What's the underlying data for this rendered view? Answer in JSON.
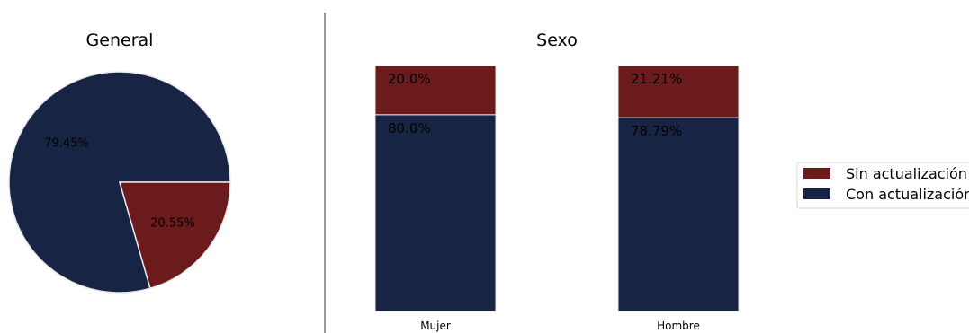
{
  "colors": {
    "sin": "#6b1b1b",
    "con": "#172444",
    "divider": "#9a9a9a",
    "edge": "#e9e9e9"
  },
  "chart_data": [
    {
      "type": "pie",
      "title": "General",
      "slices": [
        {
          "name": "Con actualización",
          "value": 79.45,
          "label": "79.45%"
        },
        {
          "name": "Sin actualización",
          "value": 20.55,
          "label": "20.55%"
        }
      ]
    },
    {
      "type": "bar",
      "stacked": true,
      "normalized": true,
      "title": "Sexo",
      "categories": [
        "Mujer",
        "Hombre"
      ],
      "series": [
        {
          "name": "Con actualización",
          "values": [
            80.0,
            78.79
          ],
          "labels": [
            "80.0%",
            "78.79%"
          ]
        },
        {
          "name": "Sin actualización",
          "values": [
            20.0,
            21.21
          ],
          "labels": [
            "20.0%",
            "21.21%"
          ]
        }
      ],
      "ylim": [
        0,
        100
      ],
      "grid": false,
      "legend_placement": "right"
    }
  ],
  "legend": {
    "items": [
      {
        "label": "Sin actualización",
        "series": "sin"
      },
      {
        "label": "Con actualización",
        "series": "con"
      }
    ]
  }
}
